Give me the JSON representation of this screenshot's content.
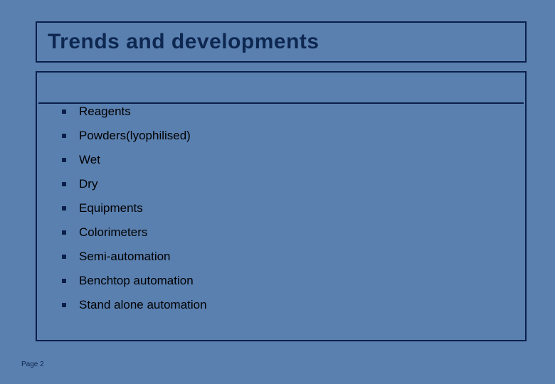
{
  "title": "Trends  and developments",
  "items": [
    "Reagents",
    "Powders(lyophilised)",
    "Wet",
    "Dry",
    "Equipments",
    "Colorimeters",
    "Semi-automation",
    "Benchtop automation",
    "Stand alone automation"
  ],
  "page_label": "Page 2",
  "colors": {
    "background": "#5a80b0",
    "border": "#0a1f4a",
    "title_text": "#0d2750",
    "item_text": "#000000",
    "bullet": "#0a1f4a"
  }
}
